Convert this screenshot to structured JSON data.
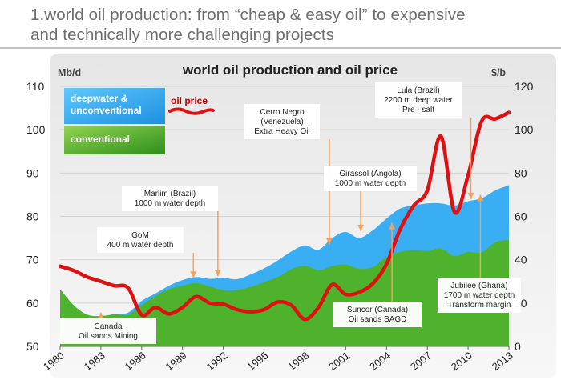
{
  "slide": {
    "title_line1": "1.world oil production: from “cheap & easy oil” to expensive",
    "title_line2": "and technically more challenging projects"
  },
  "chart_data": {
    "type": "area",
    "title": "world oil production and oil price",
    "left_axis": {
      "unit": "Mb/d",
      "ylim": [
        50,
        110
      ],
      "ticks": [
        "110",
        "100",
        "90",
        "80",
        "70",
        "60",
        "50"
      ]
    },
    "right_axis": {
      "unit": "$/b",
      "ylim": [
        0,
        120
      ],
      "ticks": [
        "120",
        "100",
        "80",
        "60",
        "40",
        "20",
        "0"
      ]
    },
    "x": [
      "1980",
      "1983",
      "1986",
      "1989",
      "1992",
      "1995",
      "1998",
      "2001",
      "2004",
      "2007",
      "2010",
      "2013"
    ],
    "legend": [
      {
        "name": "deepwater & unconventional",
        "lines": [
          "deepwater &",
          "unconventional"
        ],
        "color": "#2fa8f0"
      },
      {
        "name": "conventional",
        "lines": [
          "conventional"
        ],
        "color": "#3aa021"
      },
      {
        "name": "oil price",
        "lines": [
          "oil price"
        ],
        "color": "#dd1111"
      }
    ],
    "series": [
      {
        "name": "conventional",
        "axis": "left",
        "color": "#3aa021",
        "points": [
          [
            1980,
            63.2
          ],
          [
            1981,
            59.5
          ],
          [
            1982,
            57.3
          ],
          [
            1983,
            57.0
          ],
          [
            1984,
            57.4
          ],
          [
            1985,
            57.3
          ],
          [
            1986,
            59.5
          ],
          [
            1987,
            61.6
          ],
          [
            1988,
            63.2
          ],
          [
            1989,
            64.0
          ],
          [
            1990,
            64.6
          ],
          [
            1991,
            63.8
          ],
          [
            1992,
            63.0
          ],
          [
            1993,
            63.0
          ],
          [
            1994,
            63.7
          ],
          [
            1995,
            64.8
          ],
          [
            1996,
            66.0
          ],
          [
            1997,
            67.8
          ],
          [
            1998,
            68.6
          ],
          [
            1999,
            67.6
          ],
          [
            2000,
            68.5
          ],
          [
            2001,
            68.9
          ],
          [
            2002,
            67.9
          ],
          [
            2003,
            68.3
          ],
          [
            2004,
            70.6
          ],
          [
            2005,
            71.8
          ],
          [
            2006,
            72.2
          ],
          [
            2007,
            72.0
          ],
          [
            2008,
            72.6
          ],
          [
            2009,
            70.8
          ],
          [
            2010,
            71.8
          ],
          [
            2011,
            71.7
          ],
          [
            2012,
            74.0
          ],
          [
            2013,
            74.6
          ]
        ]
      },
      {
        "name": "total (conventional + deepwater & unconventional)",
        "axis": "left",
        "color": "#2fa8f0",
        "points": [
          [
            1980,
            63.2
          ],
          [
            1981,
            59.5
          ],
          [
            1982,
            57.3
          ],
          [
            1983,
            57.0
          ],
          [
            1984,
            57.4
          ],
          [
            1985,
            57.8
          ],
          [
            1986,
            60.5
          ],
          [
            1987,
            62.2
          ],
          [
            1988,
            64.0
          ],
          [
            1989,
            65.3
          ],
          [
            1990,
            66.0
          ],
          [
            1991,
            65.6
          ],
          [
            1992,
            65.8
          ],
          [
            1993,
            65.5
          ],
          [
            1994,
            66.6
          ],
          [
            1995,
            68.0
          ],
          [
            1996,
            69.8
          ],
          [
            1997,
            71.9
          ],
          [
            1998,
            73.3
          ],
          [
            1999,
            72.3
          ],
          [
            2000,
            75.0
          ],
          [
            2001,
            76.4
          ],
          [
            2002,
            75.0
          ],
          [
            2003,
            76.8
          ],
          [
            2004,
            79.5
          ],
          [
            2005,
            81.8
          ],
          [
            2006,
            82.5
          ],
          [
            2007,
            83.0
          ],
          [
            2008,
            83.0
          ],
          [
            2009,
            82.5
          ],
          [
            2010,
            83.5
          ],
          [
            2011,
            84.2
          ],
          [
            2012,
            86.0
          ],
          [
            2013,
            87.2
          ]
        ]
      },
      {
        "name": "oil price",
        "axis": "right",
        "color": "#dd1111",
        "points": [
          [
            1980,
            37
          ],
          [
            1981,
            35
          ],
          [
            1982,
            32
          ],
          [
            1983,
            30
          ],
          [
            1984,
            28
          ],
          [
            1985,
            27
          ],
          [
            1986,
            14.5
          ],
          [
            1987,
            18
          ],
          [
            1988,
            15
          ],
          [
            1989,
            18
          ],
          [
            1990,
            23
          ],
          [
            1991,
            20
          ],
          [
            1992,
            19.5
          ],
          [
            1993,
            17
          ],
          [
            1994,
            16
          ],
          [
            1995,
            17
          ],
          [
            1996,
            20.5
          ],
          [
            1997,
            19
          ],
          [
            1998,
            12.5
          ],
          [
            1999,
            18
          ],
          [
            2000,
            28.5
          ],
          [
            2001,
            24
          ],
          [
            2002,
            25
          ],
          [
            2003,
            29
          ],
          [
            2004,
            38
          ],
          [
            2005,
            54
          ],
          [
            2006,
            65
          ],
          [
            2007,
            72
          ],
          [
            2008,
            97
          ],
          [
            2009,
            62
          ],
          [
            2010,
            79
          ],
          [
            2011,
            104
          ],
          [
            2012,
            105
          ],
          [
            2013,
            108
          ]
        ]
      }
    ],
    "annotations": [
      {
        "lines": [
          "Canada",
          "Oil sands Mining"
        ],
        "year": 1983,
        "target": 57.8
      },
      {
        "lines": [
          "GoM",
          "400 m water depth"
        ],
        "year": 1989.8,
        "target": 65.8
      },
      {
        "lines": [
          "Marlim (Brazil)",
          "1000 m water depth"
        ],
        "year": 1991.6,
        "target": 66.2
      },
      {
        "lines": [
          "Cerro Negro",
          "(Venezuela)",
          "Extra Heavy Oil"
        ],
        "year": 1999.8,
        "target": 73.5
      },
      {
        "lines": [
          "Girassol (Angola)",
          "1000 m water depth"
        ],
        "year": 2002.1,
        "target": 76.6
      },
      {
        "lines": [
          "Lula (Brazil)",
          "2200 m deep water",
          "Pre - salt"
        ],
        "year": 2010.2,
        "target": 84.0
      },
      {
        "lines": [
          "Suncor (Canada)",
          "Oil sands SAGD"
        ],
        "year": 2004.4,
        "target": 78.5
      },
      {
        "lines": [
          "Jubilee (Ghana)",
          "1700 m water depth",
          "Transform margin"
        ],
        "year": 2010.9,
        "target": 85.0
      }
    ]
  }
}
